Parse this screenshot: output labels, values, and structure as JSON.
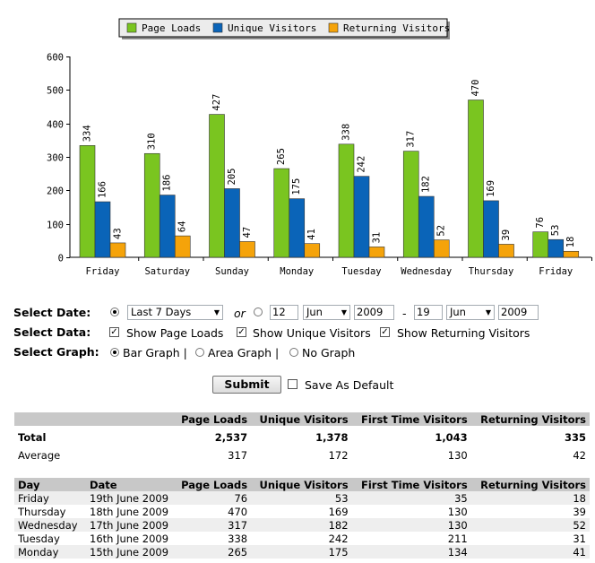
{
  "chart_data": {
    "type": "bar",
    "categories": [
      "Friday",
      "Saturday",
      "Sunday",
      "Monday",
      "Tuesday",
      "Wednesday",
      "Thursday",
      "Friday"
    ],
    "series": [
      {
        "name": "Page Loads",
        "color": "#7ac520",
        "values": [
          334,
          310,
          427,
          265,
          338,
          317,
          470,
          76
        ]
      },
      {
        "name": "Unique Visitors",
        "color": "#0a64b8",
        "values": [
          166,
          186,
          205,
          175,
          242,
          182,
          169,
          53
        ]
      },
      {
        "name": "Returning Visitors",
        "color": "#f5a30a",
        "values": [
          43,
          64,
          47,
          41,
          31,
          52,
          39,
          18
        ]
      }
    ],
    "yticks": [
      0,
      100,
      200,
      300,
      400,
      500,
      600
    ],
    "ylim": [
      0,
      600
    ],
    "legend": "top-center",
    "grid": false
  },
  "form": {
    "select_date_label": "Select Date:",
    "select_data_label": "Select Data:",
    "select_graph_label": "Select Graph:",
    "range_preset": "Last 7 Days",
    "or_text": "or",
    "from_day": "12",
    "from_month": "Jun",
    "from_year": "2009",
    "dash": "-",
    "to_day": "19",
    "to_month": "Jun",
    "to_year": "2009",
    "show_page_loads": "Show Page Loads",
    "show_unique": "Show Unique Visitors",
    "show_returning": "Show Returning Visitors",
    "bar_graph": "Bar Graph |",
    "area_graph": "Area Graph |",
    "no_graph": "No Graph",
    "submit": "Submit",
    "save_default": "Save As Default"
  },
  "summary": {
    "headers": [
      "",
      "Page Loads",
      "Unique Visitors",
      "First Time Visitors",
      "Returning Visitors"
    ],
    "total": [
      "Total",
      "2,537",
      "1,378",
      "1,043",
      "335"
    ],
    "average": [
      "Average",
      "317",
      "172",
      "130",
      "42"
    ]
  },
  "daily": {
    "headers": [
      "Day",
      "Date",
      "Page Loads",
      "Unique Visitors",
      "First Time Visitors",
      "Returning Visitors"
    ],
    "rows": [
      [
        "Friday",
        "19th June 2009",
        "76",
        "53",
        "35",
        "18"
      ],
      [
        "Thursday",
        "18th June 2009",
        "470",
        "169",
        "130",
        "39"
      ],
      [
        "Wednesday",
        "17th June 2009",
        "317",
        "182",
        "130",
        "52"
      ],
      [
        "Tuesday",
        "16th June 2009",
        "338",
        "242",
        "211",
        "31"
      ],
      [
        "Monday",
        "15th June 2009",
        "265",
        "175",
        "134",
        "41"
      ]
    ]
  }
}
